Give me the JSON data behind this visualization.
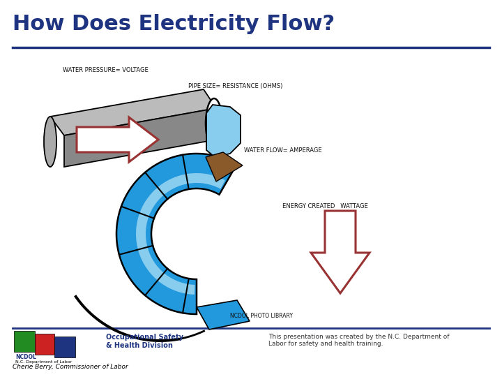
{
  "title": "How Does Electricity Flow?",
  "title_color": "#1F3480",
  "title_fontsize": 22,
  "title_line_color": "#1F3480",
  "bg_color": "#FFFFFF",
  "labels": {
    "water_pressure": "WATER PRESSURE= VOLTAGE",
    "pipe_size": "PIPE SIZE= RESISTANCE (OHMS)",
    "water_flow": "WATER FLOW= AMPERAGE",
    "energy_created": "ENERGY CREATED   WATTAGE",
    "ncdol": "NCDOL PHOTO LIBRARY"
  },
  "label_color": "#111111",
  "label_fontsize": 6.0,
  "footer_line_color": "#1F3480",
  "footer_text": "This presentation was created by the N.C. Department of\nLabor for safety and health training.",
  "footer_text_color": "#333333",
  "footer_fontsize": 6.5,
  "commissioner_text": "Cherie Berry, Commissioner of Labor",
  "commissioner_fontsize": 6.5,
  "ncdol_label": "NCDOL",
  "ncdol_dept": "N.C. Department of Labor",
  "ncdol_text1": "Occupational Safety",
  "ncdol_text2": "& Health Division",
  "red_color": "#993333",
  "gray_color": "#BBBBBB",
  "gray_dark": "#888888",
  "blue_color": "#2299DD",
  "light_blue": "#88CCEE",
  "dark_blue": "#1166AA",
  "white_color": "#FFFFFF",
  "black_color": "#000000",
  "brown_color": "#8B5A2B"
}
